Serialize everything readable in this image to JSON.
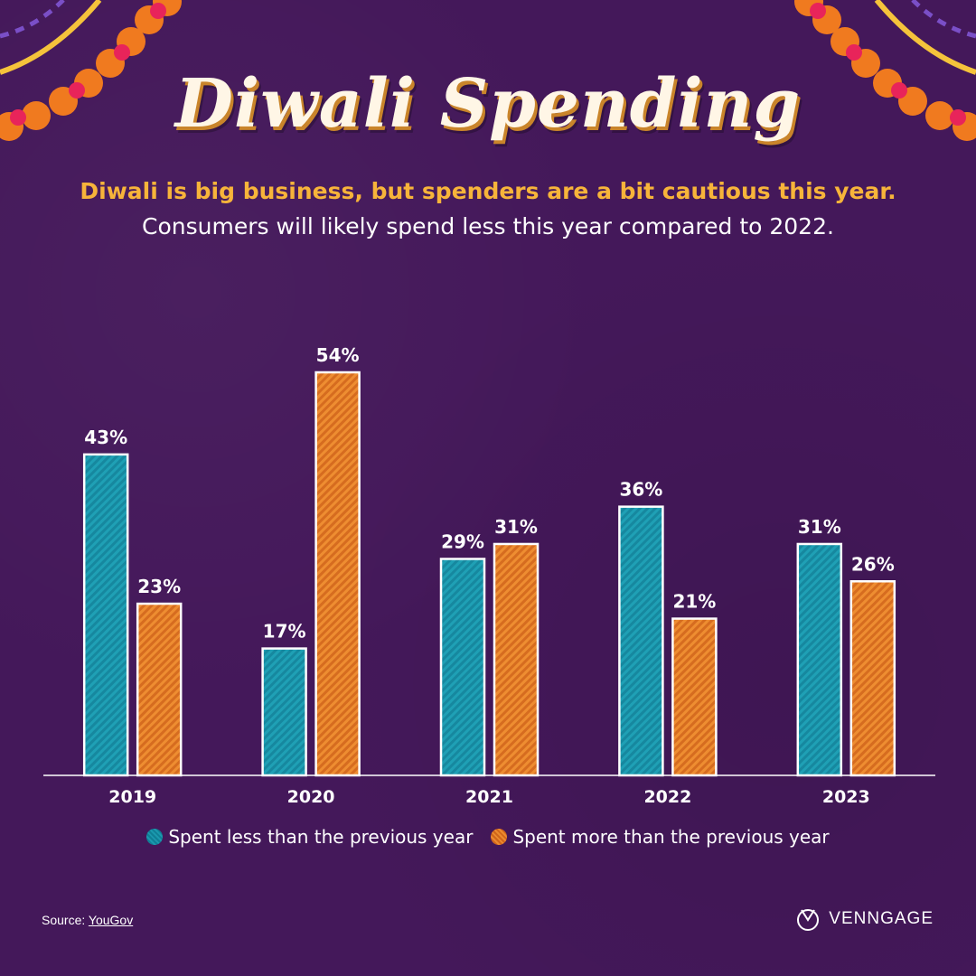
{
  "header": {
    "title": "Diwali Spending",
    "subtitle_highlight": "Diwali is big business, but spenders are a bit cautious this year.",
    "subtitle": "Consumers will likely spend less this year compared to 2022."
  },
  "chart_data": {
    "type": "bar",
    "categories": [
      "2019",
      "2020",
      "2021",
      "2022",
      "2023"
    ],
    "series": [
      {
        "name": "Spent less than the previous year",
        "values": [
          43,
          17,
          29,
          36,
          31
        ],
        "color": "#1a8fa6",
        "labels": [
          "43%",
          "17%",
          "29%",
          "36%",
          "31%"
        ]
      },
      {
        "name": "Spent more than the previous year",
        "values": [
          23,
          54,
          31,
          21,
          26
        ],
        "color": "#e07a24",
        "labels": [
          "23%",
          "54%",
          "31%",
          "21%",
          "26%"
        ]
      }
    ],
    "ylim": [
      0,
      54
    ],
    "unit": "%",
    "grid": false,
    "legend_position": "bottom",
    "xlabel": "",
    "ylabel": ""
  },
  "legend": {
    "items": [
      {
        "label": "Spent less than the previous year"
      },
      {
        "label": "Spent more than the previous year"
      }
    ]
  },
  "footer": {
    "source_prefix": "Source: ",
    "source_name": "YouGov",
    "brand": "VENNGAGE"
  },
  "colors": {
    "background": "#44185a",
    "teal": "#1a8fa6",
    "orange": "#e07a24",
    "accent_text": "#f7b43a"
  }
}
